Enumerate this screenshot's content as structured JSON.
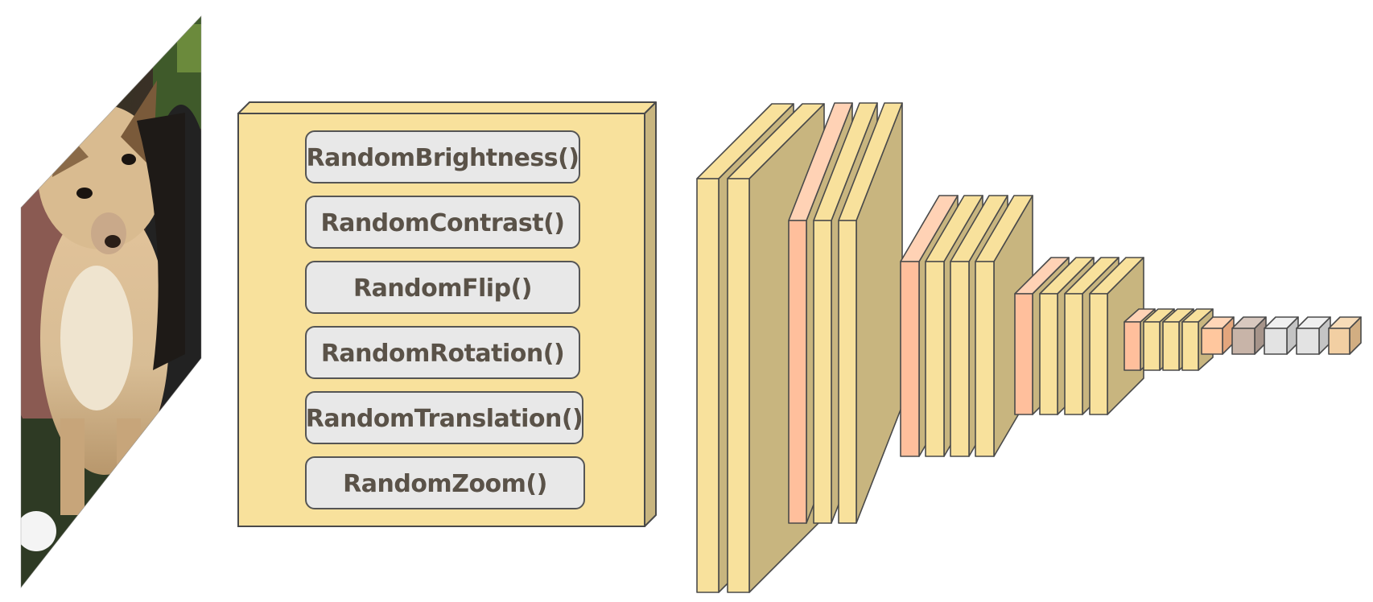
{
  "input_image": {
    "subject": "dog photo (chihuahua) shown as a skewed input plane"
  },
  "augmentation_block": {
    "layers": [
      "RandomBrightness()",
      "RandomContrast()",
      "RandomFlip()",
      "RandomRotation()",
      "RandomTranslation()",
      "RandomZoom()"
    ]
  },
  "colors": {
    "conv_front": "#f8e19c",
    "conv_side": "#c8b57f",
    "pool_front": "#ffbf9c",
    "pool_top": "#ffd2b5",
    "edge": "#4a4a4a",
    "dense_orange": "#ffc79e",
    "dense_brown": "#c8b4a8",
    "dense_gray": "#e3e3e3",
    "dense_tan": "#f2cfa3",
    "button_fill": "#e8e8e8",
    "label_text": "#5a5248"
  }
}
